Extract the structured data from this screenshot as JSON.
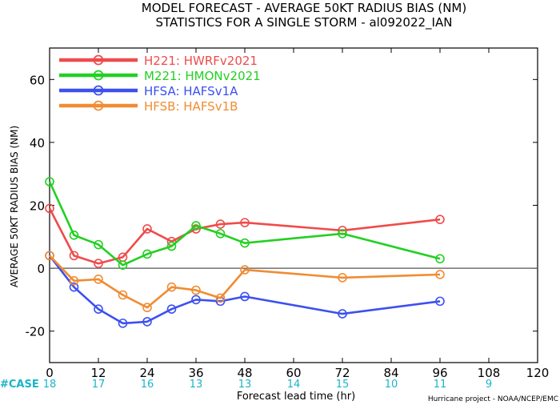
{
  "chart_data": {
    "type": "line",
    "title": "MODEL FORECAST - AVERAGE 50KT RADIUS BIAS (NM)",
    "subtitle": "STATISTICS FOR A SINGLE STORM - al092022_IAN",
    "xlabel": "Forecast lead time (hr)",
    "ylabel": "AVERAGE 50KT RADIUS BIAS (NM)",
    "xlim": [
      0,
      120
    ],
    "ylim": [
      -30,
      70
    ],
    "x_ticks": [
      0,
      12,
      24,
      36,
      48,
      60,
      72,
      84,
      96,
      108,
      120
    ],
    "y_ticks": [
      -20,
      0,
      20,
      40,
      60
    ],
    "zero_line": true,
    "legend_position": "top-left",
    "series": [
      {
        "name": "H221: HWRFv2021",
        "color": "#f04b4b",
        "x": [
          0,
          6,
          12,
          18,
          24,
          30,
          36,
          42,
          48,
          72,
          96
        ],
        "y": [
          19,
          4,
          1.5,
          3.5,
          12.5,
          8.5,
          12.5,
          14,
          14.5,
          12,
          15.5
        ]
      },
      {
        "name": "M221: HMONv2021",
        "color": "#22d022",
        "x": [
          0,
          6,
          12,
          18,
          24,
          30,
          36,
          42,
          48,
          72,
          96
        ],
        "y": [
          27.5,
          10.5,
          7.5,
          1,
          4.5,
          7,
          13.5,
          11,
          8,
          11,
          3
        ]
      },
      {
        "name": "HFSA: HAFSv1A",
        "color": "#3c50f0",
        "x": [
          0,
          6,
          12,
          18,
          24,
          30,
          36,
          42,
          48,
          72,
          96
        ],
        "y": [
          4,
          -6,
          -13,
          -17.5,
          -17,
          -13,
          -10,
          -10.5,
          -9,
          -14.5,
          -10.5
        ]
      },
      {
        "name": "HFSB: HAFSv1B",
        "color": "#f08c32",
        "x": [
          0,
          6,
          12,
          18,
          24,
          30,
          36,
          42,
          48,
          72,
          96
        ],
        "y": [
          4,
          -4,
          -3.5,
          -8.5,
          -12.5,
          -6,
          -7,
          -9.5,
          -0.5,
          -3,
          -2
        ]
      }
    ],
    "cases": {
      "label": "#CASE",
      "color": "#1ab4c8",
      "entries": [
        {
          "x": 0,
          "n": "18"
        },
        {
          "x": 12,
          "n": "17"
        },
        {
          "x": 24,
          "n": "16"
        },
        {
          "x": 36,
          "n": "13"
        },
        {
          "x": 48,
          "n": "13"
        },
        {
          "x": 60,
          "n": "14"
        },
        {
          "x": 72,
          "n": "15"
        },
        {
          "x": 84,
          "n": "10"
        },
        {
          "x": 96,
          "n": "11"
        },
        {
          "x": 108,
          "n": "9"
        }
      ]
    },
    "credit": "Hurricane project - NOAA/NCEP/EMC"
  }
}
